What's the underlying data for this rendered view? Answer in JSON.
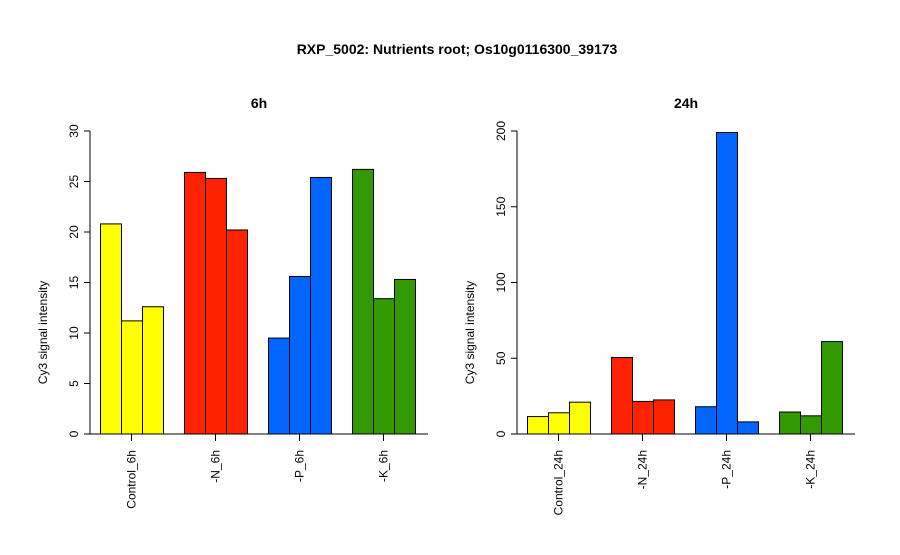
{
  "figure": {
    "title": "RXP_5002: Nutrients root; Os10g0116300_39173"
  },
  "chart_data": [
    {
      "type": "bar",
      "title": "6h",
      "xlabel": "",
      "ylabel": "Cy3 signal intensity",
      "ylim": [
        0,
        30
      ],
      "yticks": [
        0,
        5,
        10,
        15,
        20,
        25,
        30
      ],
      "grid": false,
      "categories": [
        "Control_6h",
        "-N_6h",
        "-P_6h",
        "-K_6h"
      ],
      "group_colors": [
        "#FFFF00",
        "#FF2200",
        "#0066FF",
        "#339900"
      ],
      "values": [
        [
          20.8,
          11.2,
          12.6
        ],
        [
          25.9,
          25.3,
          20.2
        ],
        [
          9.5,
          15.6,
          25.4
        ],
        [
          26.2,
          13.4,
          15.3
        ]
      ]
    },
    {
      "type": "bar",
      "title": "24h",
      "xlabel": "",
      "ylabel": "Cy3 signal intensity",
      "ylim": [
        0,
        200
      ],
      "yticks": [
        0,
        50,
        100,
        150,
        200
      ],
      "grid": false,
      "categories": [
        "Control_24h",
        "-N_24h",
        "-P_24h",
        "-K_24h"
      ],
      "group_colors": [
        "#FFFF00",
        "#FF2200",
        "#0066FF",
        "#339900"
      ],
      "values": [
        [
          11.5,
          14.0,
          21.0
        ],
        [
          50.5,
          21.5,
          22.5
        ],
        [
          18.0,
          199.0,
          8.0
        ],
        [
          14.5,
          12.0,
          61.0
        ]
      ]
    }
  ]
}
